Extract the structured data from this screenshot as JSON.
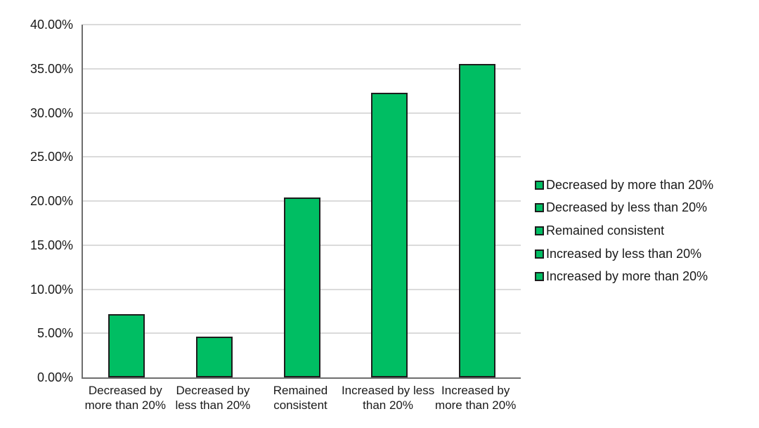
{
  "background_color": "#ffffff",
  "text_color": "#1a1a1a",
  "chart_data": {
    "type": "bar",
    "title": "",
    "xlabel": "",
    "ylabel": "",
    "categories": [
      "Decreased by more than 20%",
      "Decreased by less than 20%",
      "Remained consistent",
      "Increased by less than 20%",
      "Increased by more than 20%"
    ],
    "values": [
      7.2,
      4.6,
      20.4,
      32.3,
      35.5
    ],
    "x_tick_label_lines": [
      [
        "Decreased by",
        "more than 20%"
      ],
      [
        "Decreased by",
        "less than 20%"
      ],
      [
        "Remained",
        "consistent"
      ],
      [
        "Increased by less",
        "than 20%"
      ],
      [
        "Increased by",
        "more than 20%"
      ]
    ],
    "y_tick_labels": [
      "40.00%",
      "35.00%",
      "30.00%",
      "25.00%",
      "20.00%",
      "15.00%",
      "10.00%",
      "5.00%",
      "0.00%"
    ],
    "y_tick_values": [
      40,
      35,
      30,
      25,
      20,
      15,
      10,
      5,
      0
    ],
    "ylim": [
      0,
      40
    ],
    "grid": "horizontal",
    "legend_position": "right",
    "legend_entries": [
      "Decreased by more than 20%",
      "Decreased by less than 20%",
      "Remained consistent",
      "Increased by less than 20%",
      "Increased by more than 20%"
    ],
    "series_color": "#00be63",
    "bar_border_color": "#1d1d1d",
    "gridline_color": "#dbdbdb",
    "axis_line_color": "#6e6e6e"
  }
}
